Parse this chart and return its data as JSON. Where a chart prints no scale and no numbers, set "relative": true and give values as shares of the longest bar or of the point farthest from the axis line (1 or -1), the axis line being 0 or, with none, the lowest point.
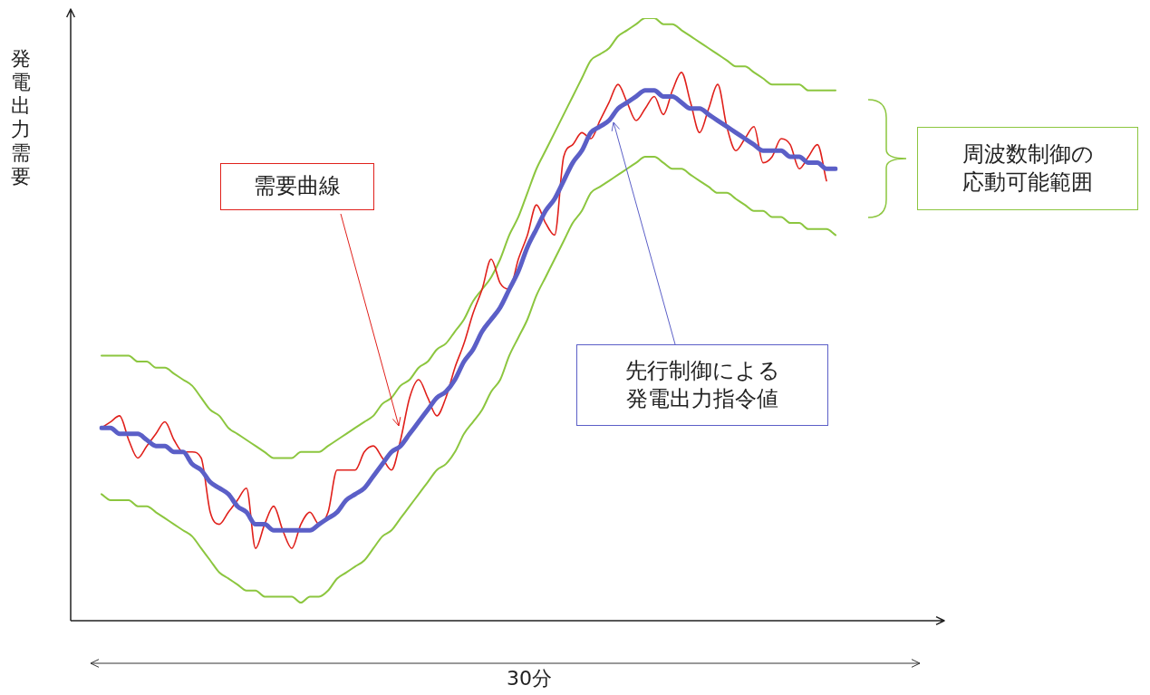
{
  "chart_data": {
    "type": "line",
    "relative": true,
    "marker": "none",
    "xlabel": "30分",
    "ylabel": "発電出力需要",
    "categories": [
      null,
      null,
      null,
      null,
      null,
      null,
      null,
      null,
      null,
      null,
      null,
      null,
      null,
      null,
      null,
      null,
      null,
      null,
      null,
      null,
      null,
      null,
      null,
      null,
      null,
      null,
      null,
      null,
      null,
      null,
      null,
      null,
      null,
      null,
      null,
      null,
      null,
      null,
      null,
      null,
      null,
      null,
      null,
      null,
      null,
      null,
      null,
      null,
      null,
      null,
      null,
      null,
      null,
      null,
      null,
      null,
      null,
      null,
      null,
      null,
      null,
      null,
      null,
      null,
      null,
      null,
      null,
      null,
      null,
      null,
      null,
      null,
      null,
      null,
      null,
      null,
      null,
      null,
      null,
      null,
      null,
      null
    ],
    "series": [
      {
        "color": "#e0201b",
        "values": [
          0.32,
          0.33,
          0.34,
          0.3,
          0.27,
          0.29,
          0.31,
          0.33,
          0.3,
          0.28,
          0.28,
          0.27,
          0.18,
          0.16,
          0.18,
          0.2,
          0.22,
          0.12,
          0.16,
          0.19,
          0.15,
          0.12,
          0.16,
          0.18,
          0.16,
          0.18,
          0.25,
          0.25,
          0.25,
          0.28,
          0.29,
          0.27,
          0.25,
          0.3,
          0.37,
          0.4,
          0.37,
          0.34,
          0.37,
          0.42,
          0.46,
          0.51,
          0.55,
          0.6,
          0.56,
          0.55,
          0.6,
          0.64,
          0.69,
          0.66,
          0.64,
          0.77,
          0.79,
          0.81,
          0.8,
          0.83,
          0.86,
          0.89,
          0.86,
          0.83,
          0.85,
          0.87,
          0.84,
          0.88,
          0.91,
          0.86,
          0.81,
          0.85,
          0.89,
          0.82,
          0.78,
          0.8,
          0.82,
          0.76,
          0.77,
          0.8,
          0.79,
          0.75,
          0.77,
          0.79,
          0.73,
          null
        ]
      },
      {
        "color": "#5b5fc7",
        "values": [
          0.32,
          0.32,
          0.31,
          0.31,
          0.31,
          0.3,
          0.29,
          0.29,
          0.28,
          0.28,
          0.26,
          0.25,
          0.23,
          0.22,
          0.21,
          0.19,
          0.18,
          0.16,
          0.16,
          0.15,
          0.15,
          0.15,
          0.15,
          0.15,
          0.16,
          0.17,
          0.18,
          0.2,
          0.21,
          0.22,
          0.24,
          0.26,
          0.28,
          0.29,
          0.31,
          0.33,
          0.35,
          0.37,
          0.38,
          0.4,
          0.43,
          0.45,
          0.48,
          0.5,
          0.52,
          0.55,
          0.58,
          0.62,
          0.65,
          0.68,
          0.7,
          0.73,
          0.76,
          0.78,
          0.81,
          0.82,
          0.83,
          0.85,
          0.86,
          0.87,
          0.88,
          0.88,
          0.87,
          0.87,
          0.86,
          0.85,
          0.85,
          0.84,
          0.83,
          0.82,
          0.81,
          0.8,
          0.79,
          0.78,
          0.78,
          0.78,
          0.77,
          0.77,
          0.76,
          0.76,
          0.75,
          0.75
        ]
      },
      {
        "color": "#8cc63f",
        "values": [
          0.44,
          0.44,
          0.44,
          0.44,
          0.43,
          0.43,
          0.42,
          0.42,
          0.41,
          0.4,
          0.39,
          0.37,
          0.35,
          0.34,
          0.32,
          0.31,
          0.3,
          0.29,
          0.28,
          0.27,
          0.27,
          0.27,
          0.28,
          0.28,
          0.28,
          0.29,
          0.3,
          0.31,
          0.32,
          0.33,
          0.34,
          0.36,
          0.37,
          0.39,
          0.4,
          0.42,
          0.43,
          0.45,
          0.46,
          0.48,
          0.5,
          0.53,
          0.55,
          0.57,
          0.6,
          0.64,
          0.67,
          0.71,
          0.75,
          0.78,
          0.81,
          0.84,
          0.87,
          0.9,
          0.93,
          0.94,
          0.95,
          0.97,
          0.98,
          0.99,
          1.0,
          1.0,
          0.99,
          0.99,
          0.98,
          0.97,
          0.96,
          0.95,
          0.94,
          0.93,
          0.92,
          0.92,
          0.91,
          0.9,
          0.89,
          0.89,
          0.89,
          0.89,
          0.88,
          0.88,
          0.88,
          0.88
        ]
      },
      {
        "color": "#8cc63f",
        "values": [
          0.21,
          0.2,
          0.2,
          0.2,
          0.19,
          0.19,
          0.18,
          0.17,
          0.16,
          0.15,
          0.14,
          0.12,
          0.1,
          0.08,
          0.07,
          0.06,
          0.05,
          0.05,
          0.04,
          0.04,
          0.04,
          0.04,
          0.03,
          0.04,
          0.04,
          0.05,
          0.07,
          0.08,
          0.09,
          0.1,
          0.12,
          0.14,
          0.15,
          0.17,
          0.19,
          0.21,
          0.23,
          0.25,
          0.26,
          0.28,
          0.31,
          0.33,
          0.35,
          0.38,
          0.4,
          0.44,
          0.47,
          0.5,
          0.54,
          0.57,
          0.6,
          0.63,
          0.66,
          0.68,
          0.71,
          0.72,
          0.73,
          0.74,
          0.75,
          0.76,
          0.77,
          0.77,
          0.76,
          0.75,
          0.75,
          0.74,
          0.73,
          0.72,
          0.71,
          0.71,
          0.7,
          0.69,
          0.68,
          0.68,
          0.67,
          0.67,
          0.66,
          0.66,
          0.65,
          0.65,
          0.65,
          0.64
        ]
      }
    ],
    "annotations": [
      "需要曲線",
      "先行制御による発電出力指令値",
      "周波数制御の応動可能範囲"
    ]
  }
}
